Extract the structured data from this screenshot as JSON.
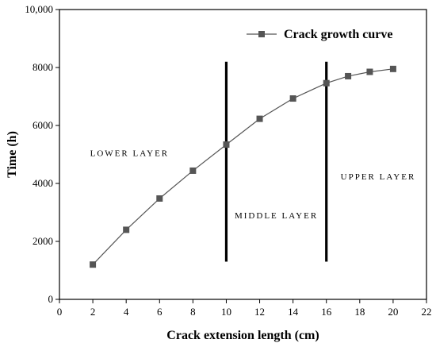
{
  "chart_data": {
    "type": "line",
    "xlabel": "Crack extension length (cm)",
    "ylabel": "Time (h)",
    "xlim": [
      0,
      22
    ],
    "ylim": [
      0,
      10000
    ],
    "x_ticks": [
      "0",
      "2",
      "4",
      "6",
      "8",
      "10",
      "12",
      "14",
      "16",
      "18",
      "20",
      "22"
    ],
    "y_ticks": [
      "0",
      "2000",
      "4000",
      "6000",
      "8000",
      "10,000"
    ],
    "grid": false,
    "legend_position": "top-right",
    "series": [
      {
        "name": "Crack growth curve",
        "color": "#555555",
        "marker": "square",
        "x": [
          2,
          4,
          6,
          8,
          10,
          12,
          14,
          16,
          17.3,
          18.6,
          20
        ],
        "y": [
          1200,
          2400,
          3480,
          4440,
          5340,
          6230,
          6930,
          7460,
          7700,
          7850,
          7950
        ]
      }
    ],
    "reference_lines": [
      {
        "x": 10,
        "y_range": [
          1300,
          8200
        ],
        "color": "#000000"
      },
      {
        "x": 16,
        "y_range": [
          1300,
          8200
        ],
        "color": "#000000"
      }
    ],
    "annotations": [
      {
        "text": "LOWER LAYER",
        "x": 4.2,
        "y": 4950
      },
      {
        "text": "MIDDLE LAYER",
        "x": 13,
        "y": 2800
      },
      {
        "text": "UPPER LAYER",
        "x": 19.1,
        "y": 4140
      }
    ]
  }
}
